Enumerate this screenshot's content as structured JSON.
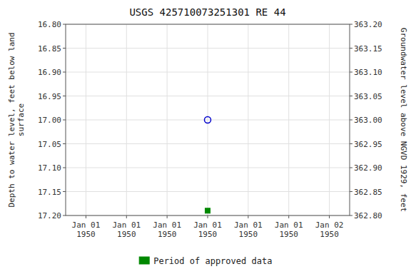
{
  "chart_data": {
    "type": "scatter",
    "title": "USGS 425710073251301 RE  44",
    "ylabel": "Depth to water level, feet below land\nsurface",
    "y2label": "Groundwater level above NGVD 1929, feet",
    "categories": [
      "Jan 01\n1950",
      "Jan 01\n1950",
      "Jan 01\n1950",
      "Jan 01\n1950",
      "Jan 01\n1950",
      "Jan 01\n1950",
      "Jan 02\n1950"
    ],
    "series": [
      {
        "color": "#0000cc",
        "marker": "open-circle",
        "values": [
          null,
          null,
          null,
          17.0,
          null,
          null,
          null
        ]
      },
      {
        "name": "Period of approved data",
        "color": "#008800",
        "marker": "square",
        "values": [
          null,
          null,
          null,
          17.19,
          null,
          null,
          null
        ]
      }
    ],
    "ylim": [
      17.2,
      16.8
    ],
    "yticks": [
      {
        "value": 16.8,
        "label": "16.80"
      },
      {
        "value": 16.85,
        "label": "16.85"
      },
      {
        "value": 16.9,
        "label": "16.90"
      },
      {
        "value": 16.95,
        "label": "16.95"
      },
      {
        "value": 17.0,
        "label": "17.00"
      },
      {
        "value": 17.05,
        "label": "17.05"
      },
      {
        "value": 17.1,
        "label": "17.10"
      },
      {
        "value": 17.15,
        "label": "17.15"
      },
      {
        "value": 17.2,
        "label": "17.20"
      }
    ],
    "y2lim": [
      362.8,
      363.2
    ],
    "y2ticks": [
      {
        "value": 363.2,
        "label": "363.20"
      },
      {
        "value": 363.15,
        "label": "363.15"
      },
      {
        "value": 363.1,
        "label": "363.10"
      },
      {
        "value": 363.05,
        "label": "363.05"
      },
      {
        "value": 363.0,
        "label": "363.00"
      },
      {
        "value": 362.95,
        "label": "362.95"
      },
      {
        "value": 362.9,
        "label": "362.90"
      },
      {
        "value": 362.85,
        "label": "362.85"
      },
      {
        "value": 362.8,
        "label": "362.80"
      }
    ],
    "grid": true,
    "legend": "bottom"
  }
}
